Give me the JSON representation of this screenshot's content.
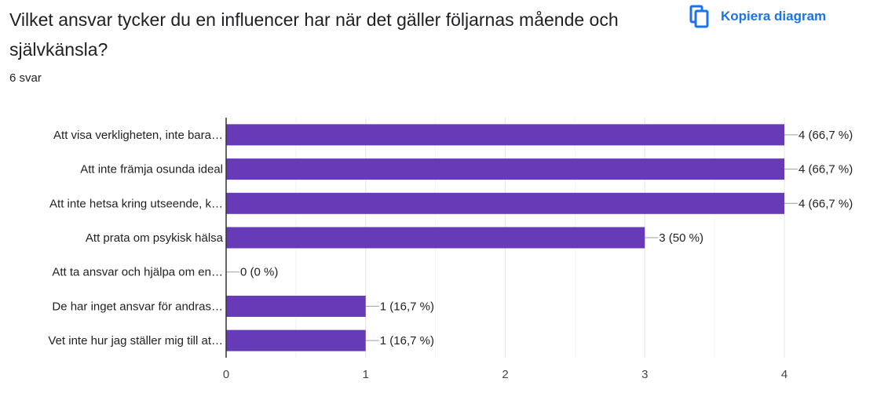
{
  "question": "Vilket ansvar tycker du en influencer har när det gäller följarnas mående och självkänsla?",
  "response_count": "6 svar",
  "copy_button": {
    "label": "Kopiera diagram",
    "icon": "copy-icon"
  },
  "colors": {
    "bar": "#673ab7",
    "accent": "#1a73e8"
  },
  "chart_data": {
    "type": "bar",
    "orientation": "horizontal",
    "categories": [
      "Att visa verkligheten, inte bara…",
      "Att inte främja osunda ideal",
      "Att inte hetsa kring utseende, k…",
      "Att prata om psykisk hälsa",
      "Att ta ansvar och hjälpa om en…",
      "De har inget ansvar för andras…",
      "Vet inte hur jag ställer mig till at…"
    ],
    "values": [
      4,
      4,
      4,
      3,
      0,
      1,
      1
    ],
    "value_labels": [
      "4 (66,7 %)",
      "4 (66,7 %)",
      "4 (66,7 %)",
      "3 (50 %)",
      "0 (0 %)",
      "1 (16,7 %)",
      "1 (16,7 %)"
    ],
    "xlim": [
      0,
      4
    ],
    "xticks": [
      0,
      1,
      2,
      3,
      4
    ],
    "grid": true
  }
}
